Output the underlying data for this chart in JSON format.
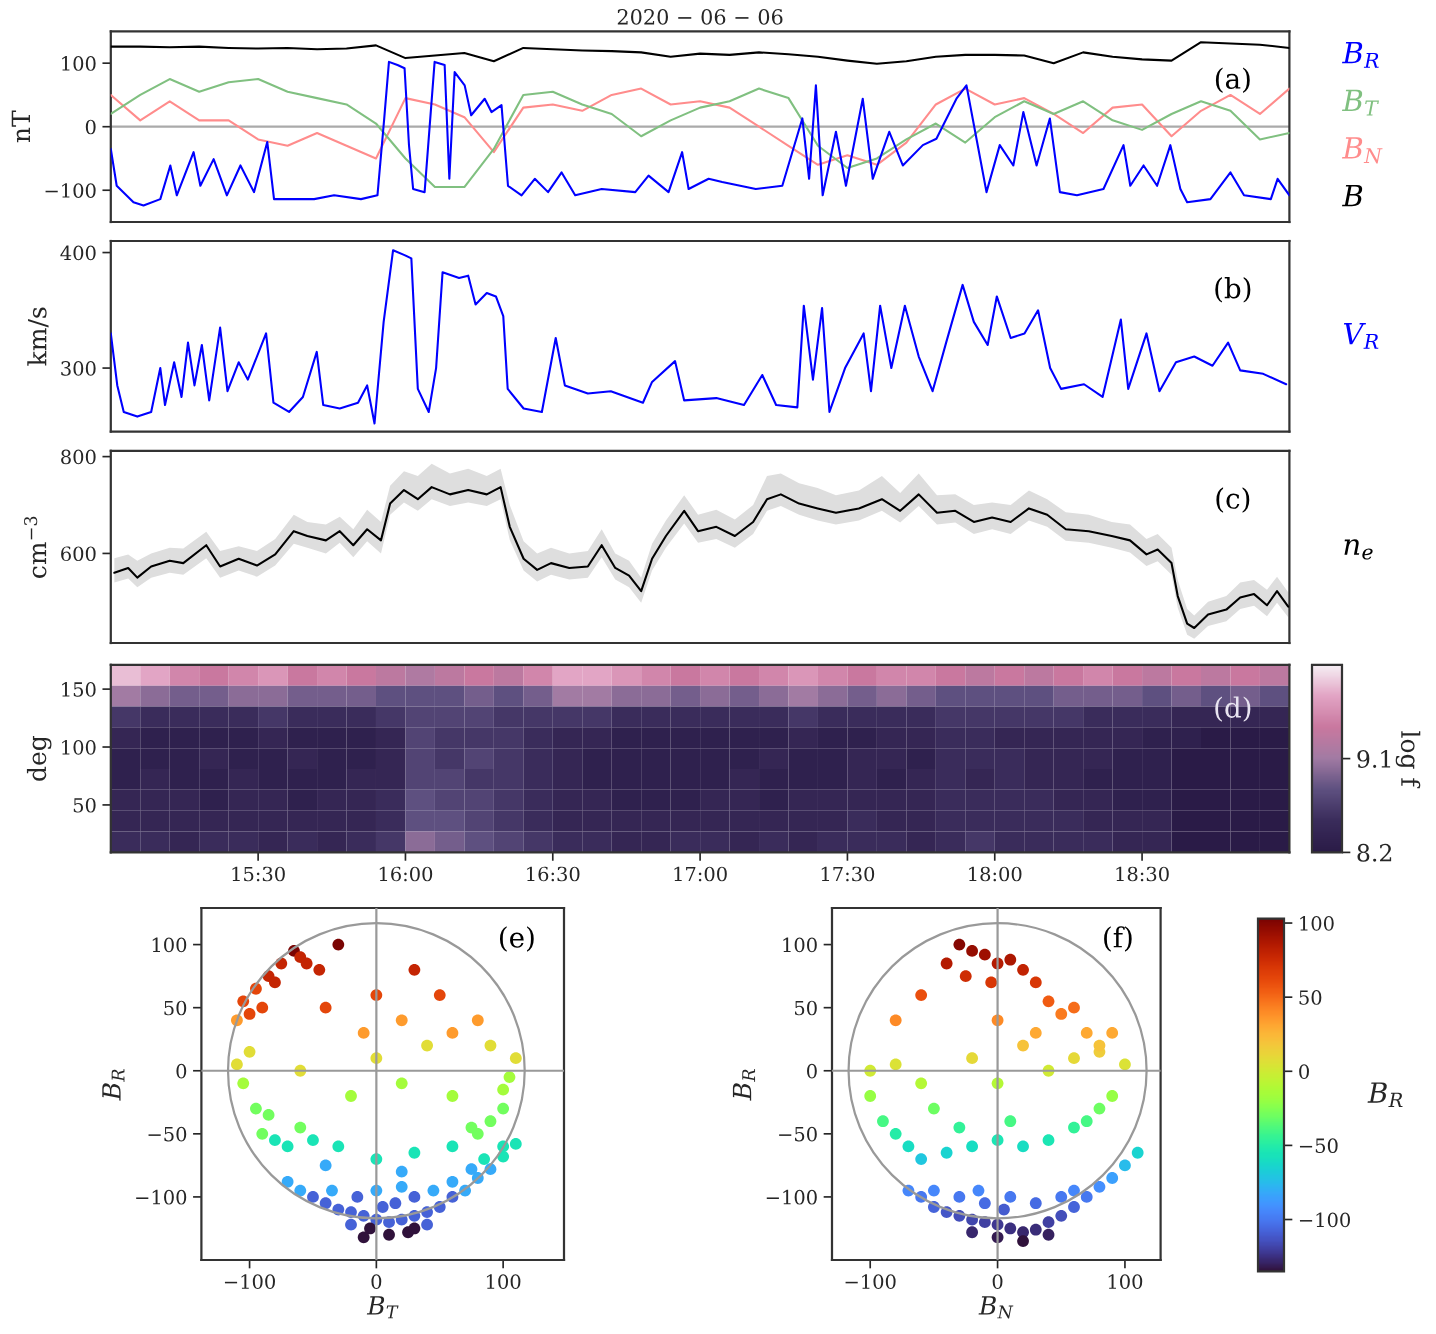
{
  "chart_data": [
    {
      "type": "line",
      "title": "2020 − 06 − 06",
      "ylabel": "nT",
      "annotations": [
        "(a)"
      ],
      "legend": "right",
      "tick_labels": "y",
      "xlim": [
        15.0,
        19.0
      ],
      "ylim": [
        -150,
        150
      ],
      "yticks": [
        -100,
        0,
        100
      ],
      "ref_lines": [
        {
          "axis": "y",
          "value": 0,
          "color": "#aaaaaa"
        }
      ],
      "series": [
        {
          "name": "B$_{R}$",
          "color": "#0000ff",
          "x": [
            15.0,
            15.02,
            15.077,
            15.111,
            15.168,
            15.202,
            15.224,
            15.281,
            15.304,
            15.349,
            15.394,
            15.44,
            15.486,
            15.531,
            15.554,
            15.69,
            15.758,
            15.849,
            15.905,
            15.928,
            15.944,
            15.973,
            15.997,
            16.012,
            16.026,
            16.065,
            16.099,
            16.133,
            16.149,
            16.167,
            16.201,
            16.223,
            16.269,
            16.292,
            16.326,
            16.348,
            16.394,
            16.439,
            16.484,
            16.53,
            16.576,
            16.666,
            16.78,
            16.825,
            16.893,
            16.939,
            16.961,
            17.029,
            17.075,
            17.189,
            17.279,
            17.347,
            17.37,
            17.393,
            17.416,
            17.461,
            17.495,
            17.552,
            17.586,
            17.642,
            17.688,
            17.756,
            17.802,
            17.87,
            17.904,
            17.938,
            17.972,
            18.017,
            18.063,
            18.097,
            18.142,
            18.187,
            18.221,
            18.279,
            18.369,
            18.437,
            18.46,
            18.505,
            18.551,
            18.596,
            18.63,
            18.653,
            18.732,
            18.8,
            18.846,
            18.937,
            18.96,
            19.0
          ],
          "values": [
            -35,
            -93,
            -119,
            -124,
            -114,
            -61,
            -108,
            -40,
            -93,
            -51,
            -108,
            -61,
            -103,
            -24,
            -114,
            -114,
            -108,
            -114,
            -108,
            13,
            102,
            97,
            92,
            -29,
            -98,
            -103,
            102,
            97,
            -82,
            86,
            65,
            18,
            44,
            23,
            34,
            -93,
            -108,
            -82,
            -103,
            -72,
            -108,
            -98,
            -103,
            -77,
            -103,
            -40,
            -98,
            -82,
            -87,
            -98,
            -93,
            13,
            -82,
            65,
            -108,
            -8,
            -93,
            44,
            -82,
            -8,
            -61,
            -29,
            -19,
            44,
            65,
            -19,
            -103,
            -29,
            -61,
            23,
            -61,
            13,
            -103,
            -108,
            -98,
            -29,
            -93,
            -61,
            -93,
            -29,
            -98,
            -119,
            -114,
            -72,
            -108,
            -114,
            -82,
            -108
          ]
        },
        {
          "name": "B$_{T}$",
          "color": "#80c080",
          "x": [
            15.0,
            15.1,
            15.2,
            15.3,
            15.4,
            15.5,
            15.6,
            15.7,
            15.8,
            15.9,
            16.0,
            16.1,
            16.2,
            16.3,
            16.4,
            16.5,
            16.6,
            16.7,
            16.8,
            16.9,
            17.0,
            17.1,
            17.2,
            17.3,
            17.4,
            17.5,
            17.6,
            17.7,
            17.8,
            17.9,
            18.0,
            18.1,
            18.2,
            18.3,
            18.4,
            18.5,
            18.6,
            18.7,
            18.8,
            18.9,
            19.0
          ],
          "values": [
            20,
            50,
            75,
            55,
            70,
            75,
            55,
            45,
            35,
            5,
            -50,
            -95,
            -95,
            -35,
            50,
            55,
            35,
            20,
            -15,
            10,
            30,
            40,
            60,
            45,
            -30,
            -65,
            -50,
            -20,
            5,
            -25,
            15,
            40,
            20,
            40,
            10,
            -5,
            20,
            40,
            25,
            -20,
            -10
          ]
        },
        {
          "name": "B$_{N}$",
          "color": "#ff8c8c",
          "x": [
            15.0,
            15.1,
            15.2,
            15.3,
            15.4,
            15.5,
            15.6,
            15.7,
            15.8,
            15.9,
            16.0,
            16.1,
            16.2,
            16.3,
            16.4,
            16.5,
            16.6,
            16.7,
            16.8,
            16.9,
            17.0,
            17.1,
            17.2,
            17.3,
            17.4,
            17.5,
            17.6,
            17.7,
            17.8,
            17.9,
            18.0,
            18.1,
            18.2,
            18.3,
            18.4,
            18.5,
            18.6,
            18.7,
            18.8,
            18.9,
            19.0
          ],
          "values": [
            50,
            10,
            40,
            10,
            10,
            -20,
            -30,
            -10,
            -30,
            -50,
            45,
            35,
            15,
            -40,
            30,
            35,
            25,
            50,
            60,
            35,
            40,
            30,
            0,
            -30,
            -60,
            -45,
            -60,
            -25,
            35,
            60,
            35,
            45,
            20,
            -10,
            30,
            35,
            -15,
            25,
            50,
            20,
            60
          ]
        },
        {
          "name": "B",
          "color": "#000000",
          "x": [
            15.0,
            15.1,
            15.2,
            15.3,
            15.4,
            15.5,
            15.6,
            15.7,
            15.8,
            15.9,
            16.0,
            16.1,
            16.2,
            16.3,
            16.4,
            16.5,
            16.6,
            16.7,
            16.8,
            16.9,
            17.0,
            17.1,
            17.2,
            17.3,
            17.4,
            17.5,
            17.6,
            17.7,
            17.8,
            17.9,
            18.0,
            18.1,
            18.2,
            18.3,
            18.4,
            18.5,
            18.6,
            18.7,
            18.8,
            18.9,
            19.0
          ],
          "values": [
            126,
            126,
            125,
            126,
            124,
            123,
            124,
            122,
            123,
            128,
            108,
            112,
            116,
            103,
            124,
            122,
            120,
            119,
            117,
            110,
            115,
            113,
            117,
            114,
            110,
            104,
            99,
            103,
            110,
            113,
            113,
            112,
            100,
            117,
            110,
            106,
            104,
            133,
            131,
            129,
            124
          ]
        }
      ]
    },
    {
      "type": "line",
      "ylabel": "km/s",
      "annotations": [
        "(b)"
      ],
      "legend": "right",
      "tick_labels": "y",
      "xlim": [
        15.0,
        19.0
      ],
      "ylim": [
        245,
        410
      ],
      "yticks": [
        300,
        400
      ],
      "series": [
        {
          "name": "V$_{R}$",
          "color": "#0000ff",
          "x": [
            15.0,
            15.022,
            15.044,
            15.09,
            15.137,
            15.168,
            15.184,
            15.215,
            15.24,
            15.262,
            15.284,
            15.309,
            15.334,
            15.371,
            15.396,
            15.434,
            15.465,
            15.527,
            15.552,
            15.605,
            15.652,
            15.699,
            15.721,
            15.777,
            15.839,
            15.87,
            15.895,
            15.926,
            15.958,
            15.995,
            16.02,
            16.042,
            16.079,
            16.104,
            16.126,
            16.182,
            16.213,
            16.238,
            16.276,
            16.307,
            16.332,
            16.347,
            16.401,
            16.463,
            16.51,
            16.541,
            16.619,
            16.697,
            16.806,
            16.837,
            16.915,
            16.946,
            17.055,
            17.149,
            17.211,
            17.258,
            17.33,
            17.352,
            17.383,
            17.414,
            17.439,
            17.492,
            17.555,
            17.58,
            17.611,
            17.649,
            17.695,
            17.742,
            17.789,
            17.835,
            17.891,
            17.929,
            17.976,
            18.007,
            18.054,
            18.101,
            18.147,
            18.188,
            18.225,
            18.303,
            18.366,
            18.428,
            18.453,
            18.515,
            18.559,
            18.615,
            18.677,
            18.739,
            18.792,
            18.833,
            18.911,
            18.989
          ],
          "values": [
            330,
            285,
            262,
            258,
            262,
            300,
            268,
            305,
            275,
            322,
            285,
            320,
            272,
            335,
            280,
            305,
            290,
            330,
            270,
            262,
            275,
            314,
            268,
            265,
            270,
            285,
            252,
            340,
            402,
            398,
            395,
            282,
            262,
            300,
            383,
            378,
            380,
            355,
            365,
            362,
            345,
            282,
            265,
            262,
            326,
            285,
            278,
            280,
            270,
            288,
            306,
            272,
            274,
            268,
            294,
            268,
            266,
            354,
            290,
            352,
            262,
            300,
            330,
            280,
            354,
            300,
            354,
            310,
            280,
            322,
            372,
            340,
            320,
            362,
            326,
            330,
            350,
            300,
            282,
            286,
            275,
            342,
            282,
            330,
            280,
            305,
            310,
            302,
            322,
            298,
            295,
            286
          ]
        }
      ]
    },
    {
      "type": "line",
      "ylabel": "cm$^{−3}$",
      "annotations": [
        "(c)"
      ],
      "legend": "right",
      "tick_labels": "y",
      "xlim": [
        15.0,
        19.0
      ],
      "ylim": [
        415,
        812
      ],
      "yticks": [
        600,
        800
      ],
      "series": [
        {
          "name": "n$_{e}$",
          "color": "#000000",
          "x": [
            15.012,
            15.059,
            15.09,
            15.137,
            15.2,
            15.246,
            15.324,
            15.371,
            15.434,
            15.496,
            15.558,
            15.621,
            15.667,
            15.73,
            15.777,
            15.823,
            15.87,
            15.917,
            15.948,
            15.995,
            16.042,
            16.089,
            16.151,
            16.213,
            16.276,
            16.323,
            16.354,
            16.401,
            16.447,
            16.494,
            16.556,
            16.619,
            16.666,
            16.712,
            16.759,
            16.8,
            16.837,
            16.884,
            16.946,
            16.993,
            17.055,
            17.118,
            17.18,
            17.227,
            17.274,
            17.336,
            17.399,
            17.461,
            17.539,
            17.617,
            17.679,
            17.742,
            17.804,
            17.866,
            17.929,
            17.991,
            18.054,
            18.116,
            18.178,
            18.241,
            18.319,
            18.397,
            18.459,
            18.515,
            18.553,
            18.6,
            18.621,
            18.653,
            18.677,
            18.724,
            18.786,
            18.833,
            18.88,
            18.924,
            18.958,
            18.996
          ],
          "values": [
            560,
            570,
            550,
            573,
            585,
            580,
            617,
            573,
            589,
            575,
            598,
            646,
            636,
            627,
            646,
            617,
            650,
            627,
            703,
            731,
            712,
            737,
            722,
            731,
            722,
            737,
            655,
            589,
            566,
            580,
            570,
            573,
            617,
            570,
            554,
            522,
            589,
            636,
            688,
            646,
            655,
            636,
            665,
            712,
            722,
            703,
            693,
            684,
            693,
            712,
            688,
            722,
            684,
            688,
            665,
            674,
            665,
            693,
            680,
            650,
            646,
            636,
            627,
            598,
            608,
            580,
            512,
            455,
            446,
            474,
            484,
            509,
            516,
            493,
            522,
            490
          ],
          "lower": [
            540,
            548,
            530,
            550,
            560,
            556,
            590,
            550,
            565,
            552,
            575,
            620,
            612,
            600,
            622,
            592,
            625,
            600,
            680,
            705,
            688,
            712,
            698,
            705,
            698,
            712,
            628,
            565,
            542,
            556,
            546,
            550,
            592,
            546,
            530,
            498,
            565,
            612,
            662,
            622,
            630,
            612,
            640,
            688,
            698,
            680,
            668,
            660,
            668,
            688,
            664,
            698,
            660,
            664,
            640,
            650,
            640,
            668,
            655,
            626,
            622,
            612,
            602,
            574,
            584,
            556,
            488,
            432,
            424,
            450,
            460,
            485,
            492,
            470,
            498,
            468
          ],
          "upper": [
            590,
            598,
            585,
            600,
            612,
            610,
            645,
            605,
            615,
            605,
            630,
            680,
            665,
            660,
            676,
            650,
            690,
            665,
            740,
            770,
            760,
            785,
            765,
            775,
            760,
            775,
            700,
            625,
            600,
            612,
            600,
            605,
            650,
            600,
            585,
            550,
            620,
            668,
            720,
            680,
            690,
            670,
            700,
            760,
            765,
            745,
            735,
            720,
            730,
            760,
            725,
            765,
            720,
            722,
            700,
            705,
            700,
            730,
            712,
            685,
            680,
            665,
            660,
            630,
            640,
            612,
            545,
            485,
            472,
            500,
            512,
            540,
            545,
            525,
            552,
            520
          ]
        }
      ]
    },
    {
      "type": "heatmap",
      "ylabel": "deg",
      "annotations": [
        "(d)"
      ],
      "x": [
        15.05,
        15.15,
        15.25,
        15.35,
        15.45,
        15.55,
        15.65,
        15.75,
        15.85,
        15.95,
        16.05,
        16.15,
        16.25,
        16.35,
        16.45,
        16.55,
        16.65,
        16.75,
        16.85,
        16.95,
        17.05,
        17.15,
        17.25,
        17.35,
        17.45,
        17.55,
        17.65,
        17.75,
        17.85,
        17.95,
        18.05,
        18.15,
        18.25,
        18.35,
        18.45,
        18.55,
        18.65,
        18.75,
        18.85,
        18.95
      ],
      "cells": [
        [
          9.8,
          9.7,
          9.5,
          9.4,
          9.5,
          9.6,
          9.4,
          9.5,
          9.4,
          9.3,
          9.2,
          9.3,
          9.4,
          9.3,
          9.5,
          9.7,
          9.7,
          9.6,
          9.5,
          9.4,
          9.5,
          9.4,
          9.5,
          9.6,
          9.5,
          9.4,
          9.5,
          9.5,
          9.4,
          9.3,
          9.4,
          9.3,
          9.4,
          9.5,
          9.4,
          9.3,
          9.4,
          9.3,
          9.4,
          9.3
        ],
        [
          9.1,
          9.0,
          8.9,
          8.9,
          9.0,
          9.0,
          8.9,
          8.9,
          8.9,
          8.8,
          8.8,
          8.8,
          8.9,
          8.8,
          8.9,
          9.1,
          9.1,
          9.0,
          9.0,
          8.9,
          9.0,
          8.9,
          9.0,
          9.1,
          9.0,
          8.9,
          9.0,
          8.9,
          8.8,
          8.8,
          8.8,
          8.8,
          8.9,
          8.9,
          8.9,
          8.8,
          8.9,
          8.8,
          8.9,
          8.8
        ],
        [
          8.6,
          8.5,
          8.5,
          8.5,
          8.5,
          8.6,
          8.5,
          8.5,
          8.5,
          8.6,
          8.7,
          8.7,
          8.7,
          8.6,
          8.6,
          8.6,
          8.6,
          8.5,
          8.5,
          8.5,
          8.5,
          8.5,
          8.5,
          8.6,
          8.5,
          8.5,
          8.5,
          8.5,
          8.6,
          8.6,
          8.6,
          8.6,
          8.6,
          8.5,
          8.5,
          8.5,
          8.4,
          8.4,
          8.4,
          8.4
        ],
        [
          8.4,
          8.3,
          8.3,
          8.3,
          8.3,
          8.4,
          8.3,
          8.3,
          8.3,
          8.4,
          8.7,
          8.6,
          8.6,
          8.6,
          8.5,
          8.4,
          8.4,
          8.3,
          8.3,
          8.3,
          8.3,
          8.3,
          8.3,
          8.4,
          8.3,
          8.3,
          8.4,
          8.4,
          8.5,
          8.5,
          8.4,
          8.4,
          8.4,
          8.4,
          8.4,
          8.3,
          8.3,
          8.2,
          8.2,
          8.2
        ],
        [
          8.3,
          8.3,
          8.3,
          8.4,
          8.3,
          8.3,
          8.4,
          8.3,
          8.3,
          8.4,
          8.7,
          8.6,
          8.7,
          8.6,
          8.5,
          8.4,
          8.3,
          8.3,
          8.3,
          8.3,
          8.3,
          8.3,
          8.4,
          8.3,
          8.3,
          8.4,
          8.4,
          8.3,
          8.5,
          8.5,
          8.5,
          8.4,
          8.4,
          8.4,
          8.3,
          8.3,
          8.2,
          8.2,
          8.2,
          8.2
        ],
        [
          8.3,
          8.4,
          8.3,
          8.3,
          8.4,
          8.3,
          8.3,
          8.3,
          8.4,
          8.4,
          8.7,
          8.7,
          8.6,
          8.6,
          8.5,
          8.4,
          8.3,
          8.3,
          8.3,
          8.3,
          8.3,
          8.4,
          8.3,
          8.3,
          8.3,
          8.4,
          8.3,
          8.4,
          8.5,
          8.4,
          8.5,
          8.4,
          8.4,
          8.3,
          8.3,
          8.3,
          8.2,
          8.2,
          8.2,
          8.2
        ],
        [
          8.4,
          8.4,
          8.4,
          8.3,
          8.4,
          8.4,
          8.3,
          8.4,
          8.4,
          8.5,
          8.8,
          8.7,
          8.7,
          8.6,
          8.5,
          8.4,
          8.4,
          8.3,
          8.3,
          8.3,
          8.4,
          8.4,
          8.3,
          8.4,
          8.4,
          8.4,
          8.4,
          8.4,
          8.5,
          8.5,
          8.5,
          8.5,
          8.4,
          8.4,
          8.3,
          8.3,
          8.2,
          8.2,
          8.2,
          8.2
        ],
        [
          8.4,
          8.4,
          8.4,
          8.4,
          8.4,
          8.4,
          8.4,
          8.4,
          8.4,
          8.5,
          8.8,
          8.8,
          8.7,
          8.6,
          8.5,
          8.4,
          8.4,
          8.4,
          8.4,
          8.4,
          8.4,
          8.4,
          8.4,
          8.4,
          8.4,
          8.5,
          8.4,
          8.4,
          8.5,
          8.5,
          8.5,
          8.5,
          8.5,
          8.4,
          8.4,
          8.4,
          8.2,
          8.2,
          8.2,
          8.2
        ],
        [
          8.5,
          8.5,
          8.4,
          8.5,
          8.5,
          8.4,
          8.5,
          8.4,
          8.5,
          8.6,
          9.0,
          8.9,
          8.8,
          8.7,
          8.6,
          8.5,
          8.5,
          8.4,
          8.4,
          8.5,
          8.5,
          8.4,
          8.5,
          8.4,
          8.5,
          8.5,
          8.5,
          8.4,
          8.5,
          8.6,
          8.5,
          8.5,
          8.5,
          8.5,
          8.4,
          8.4,
          8.2,
          8.2,
          8.2,
          8.2
        ]
      ],
      "xlim": [
        15.0,
        19.0
      ],
      "xticks": [
        {
          "value": 15.5,
          "label": "15:30"
        },
        {
          "value": 16.0,
          "label": "16:00"
        },
        {
          "value": 16.5,
          "label": "16:30"
        },
        {
          "value": 17.0,
          "label": "17:00"
        },
        {
          "value": 17.5,
          "label": "17:30"
        },
        {
          "value": 18.0,
          "label": "18:00"
        },
        {
          "value": 18.5,
          "label": "18:30"
        }
      ],
      "ylim": [
        9,
        171
      ],
      "yticks": [
        50,
        100,
        150
      ],
      "clim": [
        8.2,
        10.0
      ],
      "cticks": [
        8.2,
        9.1
      ],
      "clabel": "log f"
    },
    {
      "type": "scatter",
      "xlabel": "B$_{T}$",
      "ylabel": "B$_{R}$",
      "annotations": [
        "(e)"
      ],
      "xlim": [
        -138,
        148
      ],
      "ylim": [
        -150,
        129
      ],
      "xticks": [
        -100,
        0,
        100
      ],
      "yticks": [
        -100,
        -50,
        0,
        50,
        100
      ],
      "ref_lines": [
        {
          "axis": "x",
          "value": 0,
          "color": "#999999"
        },
        {
          "axis": "y",
          "value": 0,
          "color": "#999999"
        }
      ],
      "x": [
        -40,
        -30,
        -20,
        -10,
        0,
        10,
        20,
        30,
        40,
        50,
        60,
        70,
        80,
        90,
        100,
        110,
        -50,
        -60,
        -70,
        -5,
        10,
        25,
        40,
        -20,
        5,
        15,
        30,
        -35,
        45,
        60,
        75,
        0,
        20,
        -15,
        85,
        100,
        -10,
        30,
        -90,
        -80,
        -70,
        -60,
        -50,
        -95,
        -85,
        80,
        90,
        100,
        75,
        -30,
        0,
        30,
        60,
        -40,
        20,
        -105,
        -110,
        -100,
        105,
        110,
        100,
        60,
        -20,
        20,
        -60,
        40,
        0,
        -110,
        -105,
        -95,
        -85,
        -75,
        -65,
        -60,
        -55,
        -45,
        -90,
        -80,
        -100,
        -30,
        0,
        20,
        -40,
        30,
        80,
        60,
        -10,
        50,
        90
      ],
      "values": [
        -105,
        -110,
        -112,
        -115,
        -118,
        -120,
        -118,
        -115,
        -112,
        -108,
        -100,
        -95,
        -85,
        -78,
        -68,
        -58,
        -100,
        -95,
        -88,
        -125,
        -130,
        -128,
        -122,
        -122,
        -108,
        -105,
        -100,
        -95,
        -95,
        -88,
        -78,
        -95,
        -92,
        -100,
        -70,
        -60,
        -132,
        -125,
        -50,
        -55,
        -60,
        -45,
        -55,
        -30,
        -35,
        -50,
        -40,
        -30,
        -45,
        -60,
        -70,
        -65,
        -60,
        -75,
        -80,
        -10,
        5,
        15,
        -5,
        10,
        -15,
        -20,
        -20,
        -10,
        0,
        20,
        10,
        40,
        55,
        65,
        75,
        85,
        95,
        90,
        85,
        80,
        50,
        70,
        45,
        100,
        60,
        40,
        50,
        80,
        40,
        30,
        30,
        60,
        20
      ],
      "colors": [
        "#4662d7",
        "#4662d7",
        "#4662d7",
        "#4662d7",
        "#4662d7",
        "#4662d7",
        "#4662d7",
        "#4662d7",
        "#4662d7",
        "#4662d7",
        "#4662d7",
        "#36aaf9",
        "#36aaf9",
        "#36aaf9",
        "#1ae4b6",
        "#1ae4b6",
        "#4662d7",
        "#36aaf9",
        "#36aaf9",
        "#30123b",
        "#30123b",
        "#30123b",
        "#4662d7",
        "#4662d7",
        "#4662d7",
        "#4662d7",
        "#4662d7",
        "#36aaf9",
        "#36aaf9",
        "#36aaf9",
        "#36aaf9",
        "#36aaf9",
        "#36aaf9",
        "#4662d7",
        "#1ae4b6",
        "#1ae4b6",
        "#30123b",
        "#30123b",
        "#72fe5e",
        "#1ae4b6",
        "#1ae4b6",
        "#72fe5e",
        "#1ae4b6",
        "#72fe5e",
        "#72fe5e",
        "#72fe5e",
        "#72fe5e",
        "#72fe5e",
        "#72fe5e",
        "#1ae4b6",
        "#1ae4b6",
        "#1ae4b6",
        "#1ae4b6",
        "#36aaf9",
        "#36aaf9",
        "#a4fc3c",
        "#e1dd37",
        "#e1dd37",
        "#a4fc3c",
        "#e1dd37",
        "#a4fc3c",
        "#a4fc3c",
        "#a4fc3c",
        "#a4fc3c",
        "#e1dd37",
        "#e1dd37",
        "#e1dd37",
        "#fe9b2d",
        "#e4460a",
        "#e4460a",
        "#c42503",
        "#c42503",
        "#7a0403",
        "#c42503",
        "#c42503",
        "#c42503",
        "#e4460a",
        "#c42503",
        "#e4460a",
        "#7a0403",
        "#e4460a",
        "#fe9b2d",
        "#e4460a",
        "#c42503",
        "#fe9b2d",
        "#fe9b2d",
        "#fe9b2d",
        "#e4460a",
        "#e1dd37"
      ]
    },
    {
      "type": "scatter",
      "xlabel": "B$_{N}$",
      "ylabel": "B$_{R}$",
      "annotations": [
        "(f)"
      ],
      "xlim": [
        -130,
        128
      ],
      "ylim": [
        -150,
        129
      ],
      "xticks": [
        -100,
        0,
        100
      ],
      "yticks": [
        -100,
        -50,
        0,
        50,
        100
      ],
      "clim": [
        -135,
        103
      ],
      "cticks": [
        -100,
        -50,
        0,
        50,
        100
      ],
      "clabel": "B$_{R}$",
      "ref_lines": [
        {
          "axis": "x",
          "value": 0,
          "color": "#999999"
        },
        {
          "axis": "y",
          "value": 0,
          "color": "#999999"
        }
      ],
      "x": [
        -70,
        -60,
        -50,
        -40,
        -30,
        -20,
        -10,
        0,
        10,
        20,
        30,
        40,
        50,
        60,
        70,
        80,
        90,
        100,
        110,
        -30,
        -10,
        10,
        30,
        50,
        -50,
        0,
        20,
        -20,
        40,
        5,
        60,
        -15,
        -90,
        -80,
        -70,
        -60,
        -40,
        -20,
        0,
        20,
        40,
        60,
        70,
        80,
        90,
        -100,
        -50,
        10,
        -30,
        -100,
        -80,
        -60,
        60,
        80,
        100,
        40,
        0,
        -20,
        20,
        -30,
        -20,
        -10,
        0,
        10,
        20,
        -40,
        -25,
        -5,
        30,
        40,
        50,
        70,
        80,
        -60,
        -80,
        0,
        30,
        60,
        90
      ],
      "values": [
        -95,
        -100,
        -108,
        -112,
        -115,
        -118,
        -120,
        -122,
        -125,
        -128,
        -126,
        -120,
        -115,
        -108,
        -100,
        -92,
        -85,
        -75,
        -65,
        -100,
        -105,
        -100,
        -105,
        -100,
        -95,
        -132,
        -135,
        -128,
        -130,
        -110,
        -95,
        -95,
        -40,
        -50,
        -60,
        -70,
        -65,
        -60,
        -55,
        -60,
        -55,
        -45,
        -40,
        -30,
        -20,
        -20,
        -30,
        -40,
        -45,
        0,
        5,
        -10,
        10,
        15,
        5,
        0,
        -10,
        10,
        20,
        100,
        95,
        92,
        85,
        88,
        80,
        85,
        75,
        70,
        70,
        55,
        45,
        30,
        20,
        60,
        40,
        40,
        30,
        50,
        30
      ],
      "cvalues": [
        -95,
        -100,
        -108,
        -112,
        -115,
        -118,
        -120,
        -122,
        -125,
        -128,
        -126,
        -120,
        -115,
        -108,
        -100,
        -92,
        -85,
        -75,
        -65,
        -100,
        -105,
        -100,
        -105,
        -100,
        -95,
        -132,
        -135,
        -128,
        -130,
        -110,
        -95,
        -95,
        -40,
        -50,
        -60,
        -70,
        -65,
        -60,
        -55,
        -60,
        -55,
        -45,
        -40,
        -30,
        -20,
        -20,
        -30,
        -40,
        -45,
        0,
        5,
        -10,
        10,
        15,
        5,
        0,
        -10,
        10,
        20,
        100,
        95,
        92,
        85,
        88,
        80,
        85,
        75,
        70,
        70,
        55,
        45,
        30,
        20,
        60,
        40,
        40,
        30,
        50,
        30
      ]
    }
  ]
}
